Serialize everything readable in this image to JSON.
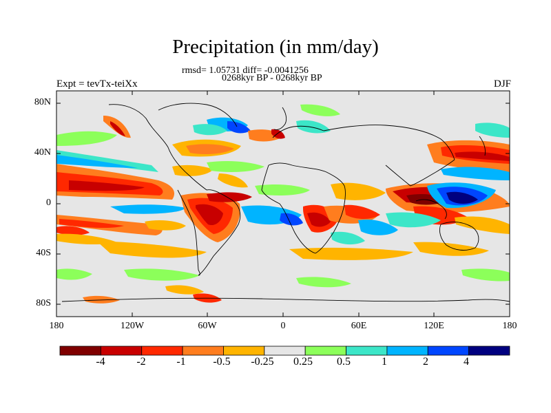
{
  "header": {
    "title": "Precipitation (in mm/day)",
    "stats": "rmsd= 1.05731 diff= -0.0041256",
    "period": "0268kyr BP - 0268kyr BP",
    "experiment": "Expt = tevTx-teiXx",
    "season": "DJF"
  },
  "axes": {
    "lat_labels": [
      "80N",
      "40N",
      "0",
      "40S",
      "80S"
    ],
    "lon_labels": [
      "180",
      "120W",
      "60W",
      "0",
      "60E",
      "120E",
      "180"
    ]
  },
  "colorbar": {
    "colors": [
      "#7f0000",
      "#c80000",
      "#ff2800",
      "#ff7d1e",
      "#ffb400",
      "#e6e6e6",
      "#8cff5a",
      "#3ce6c8",
      "#00b4ff",
      "#0046ff",
      "#00007f"
    ],
    "tick_labels": [
      "-4",
      "-2",
      "-1",
      "-0.5",
      "-0.25",
      "0.25",
      "0.5",
      "1",
      "2",
      "4"
    ]
  },
  "palette": {
    "land_neutral": "#e6e6e6",
    "coastline": "#000000"
  }
}
